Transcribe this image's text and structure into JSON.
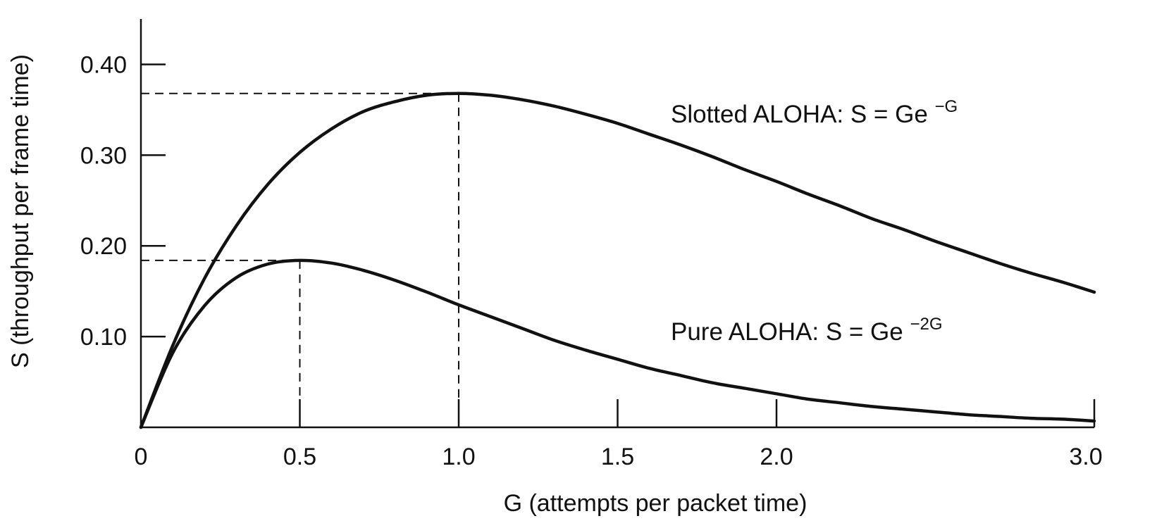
{
  "chart_data": {
    "type": "line",
    "xlabel": "G (attempts per packet time)",
    "ylabel": "S (throughput per frame time)",
    "xlim": [
      0,
      3.0
    ],
    "ylim": [
      0,
      0.45
    ],
    "x_ticks": [
      {
        "value": 0,
        "label": "0"
      },
      {
        "value": 0.5,
        "label": "0.5"
      },
      {
        "value": 1.0,
        "label": "1.0"
      },
      {
        "value": 1.5,
        "label": "1.5"
      },
      {
        "value": 2.0,
        "label": "2.0"
      },
      {
        "value": 3.0,
        "label": "3.0"
      }
    ],
    "y_ticks": [
      {
        "value": 0.1,
        "label": "0.10"
      },
      {
        "value": 0.2,
        "label": "0.20"
      },
      {
        "value": 0.3,
        "label": "0.30"
      },
      {
        "value": 0.4,
        "label": "0.40"
      }
    ],
    "grid": false,
    "series": [
      {
        "label_main": "Slotted ALOHA: S = Ge",
        "label_sup": "−G",
        "x": [
          0,
          0.1,
          0.2,
          0.3,
          0.4,
          0.5,
          0.6,
          0.7,
          0.8,
          0.9,
          1.0,
          1.1,
          1.2,
          1.3,
          1.4,
          1.5,
          1.6,
          1.7,
          1.8,
          1.9,
          2.0,
          2.1,
          2.2,
          2.3,
          2.4,
          2.5,
          2.6,
          2.7,
          2.8,
          2.9,
          3.0
        ],
        "values": [
          0,
          0.09,
          0.164,
          0.222,
          0.268,
          0.303,
          0.329,
          0.348,
          0.359,
          0.366,
          0.368,
          0.366,
          0.361,
          0.354,
          0.345,
          0.335,
          0.323,
          0.311,
          0.298,
          0.284,
          0.271,
          0.257,
          0.244,
          0.23,
          0.218,
          0.205,
          0.193,
          0.181,
          0.17,
          0.16,
          0.149
        ],
        "peak": {
          "x": 1.0,
          "y": 0.368
        }
      },
      {
        "label_main": "Pure ALOHA: S = Ge",
        "label_sup": "−2G",
        "x": [
          0,
          0.1,
          0.2,
          0.3,
          0.4,
          0.5,
          0.6,
          0.7,
          0.8,
          0.9,
          1.0,
          1.1,
          1.2,
          1.3,
          1.4,
          1.5,
          1.6,
          1.7,
          1.8,
          1.9,
          2.0,
          2.1,
          2.2,
          2.3,
          2.4,
          2.5,
          2.6,
          2.7,
          2.8,
          2.9,
          3.0
        ],
        "values": [
          0,
          0.082,
          0.134,
          0.165,
          0.18,
          0.184,
          0.181,
          0.173,
          0.162,
          0.149,
          0.135,
          0.122,
          0.109,
          0.096,
          0.085,
          0.075,
          0.065,
          0.057,
          0.049,
          0.043,
          0.037,
          0.031,
          0.027,
          0.023,
          0.02,
          0.017,
          0.014,
          0.012,
          0.01,
          0.009,
          0.007
        ],
        "peak": {
          "x": 0.5,
          "y": 0.184
        }
      }
    ]
  }
}
